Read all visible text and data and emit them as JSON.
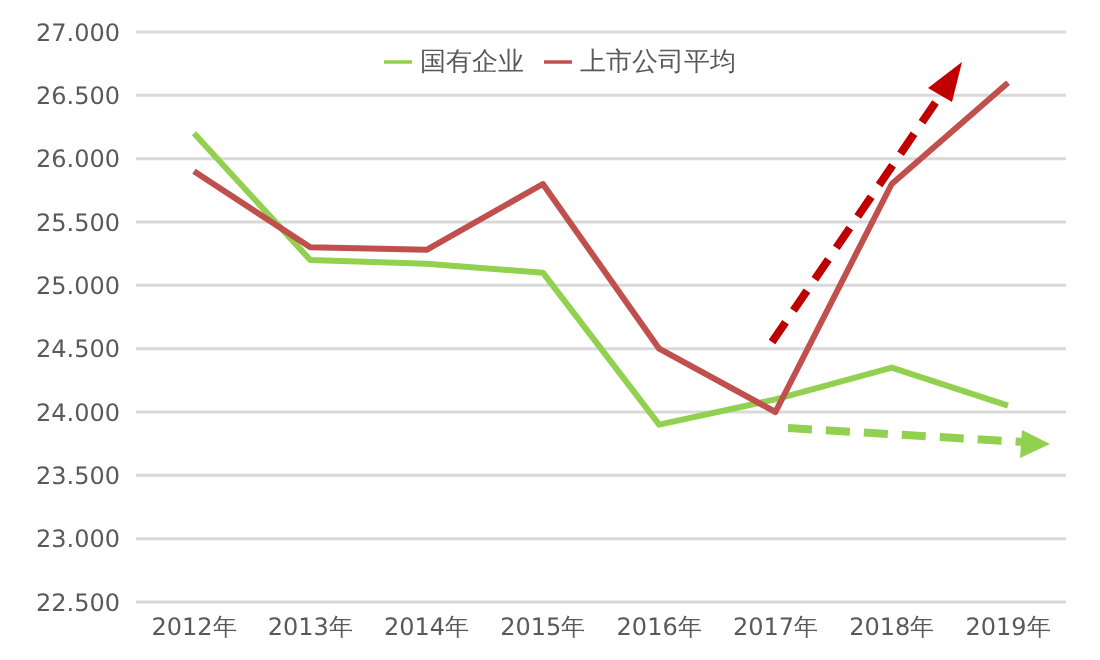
{
  "chart_data": {
    "type": "line",
    "categories": [
      "2012年",
      "2013年",
      "2014年",
      "2015年",
      "2016年",
      "2017年",
      "2018年",
      "2019年"
    ],
    "series": [
      {
        "name": "国有企业",
        "color": "#92d050",
        "values": [
          26.2,
          25.2,
          25.17,
          25.1,
          23.9,
          24.1,
          24.35,
          24.05
        ]
      },
      {
        "name": "上市公司平均",
        "color": "#c0504d",
        "values": [
          25.9,
          25.3,
          25.28,
          25.8,
          24.5,
          24.0,
          25.8,
          26.6
        ]
      }
    ],
    "ylim": [
      22.5,
      27
    ],
    "yticks": [
      {
        "value": 22.5,
        "label": "22.500"
      },
      {
        "value": 23,
        "label": "23.000"
      },
      {
        "value": 23.5,
        "label": "23.500"
      },
      {
        "value": 24,
        "label": "24.000"
      },
      {
        "value": 24.5,
        "label": "24.500"
      },
      {
        "value": 25,
        "label": "25.000"
      },
      {
        "value": 25.5,
        "label": "25.500"
      },
      {
        "value": 26,
        "label": "26.000"
      },
      {
        "value": 26.5,
        "label": "26.500"
      },
      {
        "value": 27,
        "label": "27.000"
      }
    ],
    "grid": "y",
    "legend": "top",
    "marker": "none",
    "line_style": "solid"
  }
}
